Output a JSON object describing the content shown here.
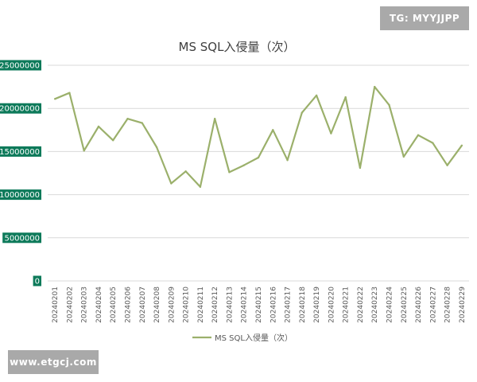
{
  "watermarks": {
    "tg": "TG: MYYJJPP",
    "site": "www.etgcj.com"
  },
  "colors": {
    "series": "#9bb06b",
    "ytick_background": "#0d7a5a",
    "badge_background": "#a9a9a9"
  },
  "chart_data": {
    "type": "line",
    "title": "MS SQL入侵量（次）",
    "xlabel": "",
    "ylabel": "",
    "ylim": [
      0,
      25000000
    ],
    "yticks": [
      "0",
      "5000000",
      "10000000",
      "15000000",
      "20000000",
      "25000000"
    ],
    "grid": true,
    "legend_position": "bottom",
    "categories": [
      "20240201",
      "20240202",
      "20240203",
      "20240204",
      "20240205",
      "20240206",
      "20240207",
      "20240208",
      "20240209",
      "20240210",
      "20240211",
      "20240212",
      "20240213",
      "20240214",
      "20240215",
      "20240216",
      "20240217",
      "20240218",
      "20240219",
      "20240220",
      "20240221",
      "20240222",
      "20240223",
      "20240224",
      "20240225",
      "20240226",
      "20240227",
      "20240228",
      "20240229"
    ],
    "series": [
      {
        "name": "MS SQL入侵量（次）",
        "values": [
          21100000,
          21800000,
          15100000,
          17900000,
          16300000,
          18800000,
          18300000,
          15500000,
          11300000,
          12700000,
          10900000,
          18800000,
          12600000,
          13400000,
          14300000,
          17500000,
          14000000,
          19500000,
          21500000,
          17100000,
          21300000,
          13100000,
          22500000,
          20400000,
          14400000,
          16900000,
          16000000,
          13400000,
          15700000
        ]
      }
    ]
  }
}
